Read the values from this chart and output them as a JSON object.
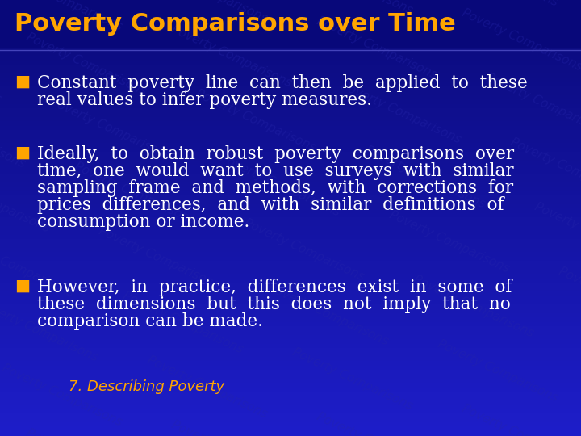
{
  "title": "Poverty Comparisons over Time",
  "title_color": "#FFA500",
  "title_fontsize": 22,
  "bg_color": "#0a0a7a",
  "bullet_color": "#FFA500",
  "text_color": "#FFFFFF",
  "footer_color": "#FFA500",
  "footer_text": "7. Describing Poverty",
  "bullet_symbol": "■",
  "bullet1_lines": [
    "Constant  poverty  line  can  then  be  applied  to  these",
    "real values to infer poverty measures."
  ],
  "bullet2_lines": [
    "Ideally,  to  obtain  robust  poverty  comparisons  over",
    "time,  one  would  want  to  use  surveys  with  similar",
    "sampling  frame  and  methods,  with  corrections  for",
    "prices  differences,  and  with  similar  definitions  of",
    "consumption or income."
  ],
  "bullet3_lines": [
    "However,  in  practice,  differences  exist  in  some  of",
    "these  dimensions  but  this  does  not  imply  that  no",
    "comparison can be made."
  ],
  "text_fontsize": 15.5,
  "footer_fontsize": 13
}
